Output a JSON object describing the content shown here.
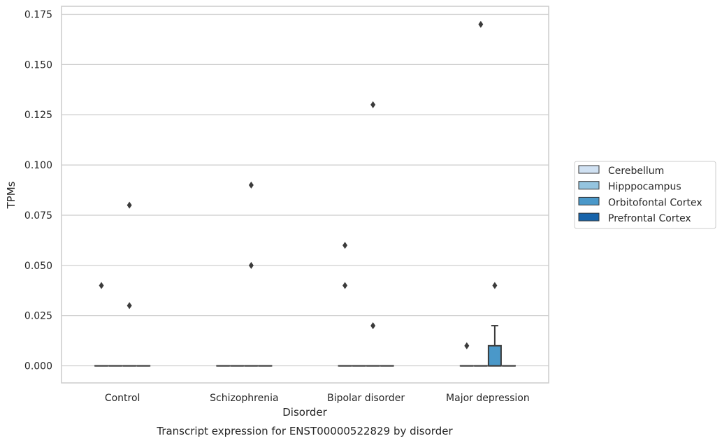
{
  "chart_data": {
    "type": "box",
    "title": "",
    "xlabel": "Disorder",
    "ylabel": "TPMs",
    "caption": "Transcript expression for ENST00000522829 by disorder",
    "ylim": [
      -0.0085,
      0.179
    ],
    "yticks": [
      "0.000",
      "0.025",
      "0.050",
      "0.075",
      "0.100",
      "0.125",
      "0.150",
      "0.175"
    ],
    "ytick_values": [
      0,
      0.025,
      0.05,
      0.075,
      0.1,
      0.125,
      0.15,
      0.175
    ],
    "grid": "horizontal",
    "legend_position": "right",
    "categories": [
      "Control",
      "Schizophrenia",
      "Bipolar disorder",
      "Major depression"
    ],
    "series": [
      {
        "name": "Cerebellum",
        "color": "#d0e1f2",
        "boxes": [
          {
            "q1": 0,
            "median": 0,
            "q3": 0,
            "whisker_low": 0,
            "whisker_high": 0,
            "outliers": [
              0.04
            ]
          },
          {
            "q1": 0,
            "median": 0,
            "q3": 0,
            "whisker_low": 0,
            "whisker_high": 0,
            "outliers": []
          },
          {
            "q1": 0,
            "median": 0,
            "q3": 0,
            "whisker_low": 0,
            "whisker_high": 0,
            "outliers": [
              0.06,
              0.04
            ]
          },
          {
            "q1": 0,
            "median": 0,
            "q3": 0,
            "whisker_low": 0,
            "whisker_high": 0,
            "outliers": [
              0.01
            ]
          }
        ]
      },
      {
        "name": "Hipppocampus",
        "color": "#94c4df",
        "boxes": [
          {
            "q1": 0,
            "median": 0,
            "q3": 0,
            "whisker_low": 0,
            "whisker_high": 0,
            "outliers": []
          },
          {
            "q1": 0,
            "median": 0,
            "q3": 0,
            "whisker_low": 0,
            "whisker_high": 0,
            "outliers": []
          },
          {
            "q1": 0,
            "median": 0,
            "q3": 0,
            "whisker_low": 0,
            "whisker_high": 0,
            "outliers": []
          },
          {
            "q1": 0,
            "median": 0,
            "q3": 0,
            "whisker_low": 0,
            "whisker_high": 0,
            "outliers": [
              0.17
            ]
          }
        ]
      },
      {
        "name": "Orbitofontal Cortex",
        "color": "#4a98c9",
        "boxes": [
          {
            "q1": 0,
            "median": 0,
            "q3": 0,
            "whisker_low": 0,
            "whisker_high": 0,
            "outliers": [
              0.08,
              0.03
            ]
          },
          {
            "q1": 0,
            "median": 0,
            "q3": 0,
            "whisker_low": 0,
            "whisker_high": 0,
            "outliers": [
              0.09,
              0.05
            ]
          },
          {
            "q1": 0,
            "median": 0,
            "q3": 0,
            "whisker_low": 0,
            "whisker_high": 0,
            "outliers": [
              0.13,
              0.02
            ]
          },
          {
            "q1": 0,
            "median": 0,
            "q3": 0.01,
            "whisker_low": 0,
            "whisker_high": 0.02,
            "outliers": [
              0.04
            ]
          }
        ]
      },
      {
        "name": "Prefrontal Cortex",
        "color": "#1764ab",
        "boxes": [
          {
            "q1": 0,
            "median": 0,
            "q3": 0,
            "whisker_low": 0,
            "whisker_high": 0,
            "outliers": []
          },
          {
            "q1": 0,
            "median": 0,
            "q3": 0,
            "whisker_low": 0,
            "whisker_high": 0,
            "outliers": []
          },
          {
            "q1": 0,
            "median": 0,
            "q3": 0,
            "whisker_low": 0,
            "whisker_high": 0,
            "outliers": []
          },
          {
            "q1": 0,
            "median": 0,
            "q3": 0,
            "whisker_low": 0,
            "whisker_high": 0,
            "outliers": []
          }
        ]
      }
    ]
  },
  "colors": {
    "grid": "#cccccc",
    "frame": "#cccccc",
    "box_edge": "#3b3b3b",
    "outlier": "#3b3b3b"
  }
}
